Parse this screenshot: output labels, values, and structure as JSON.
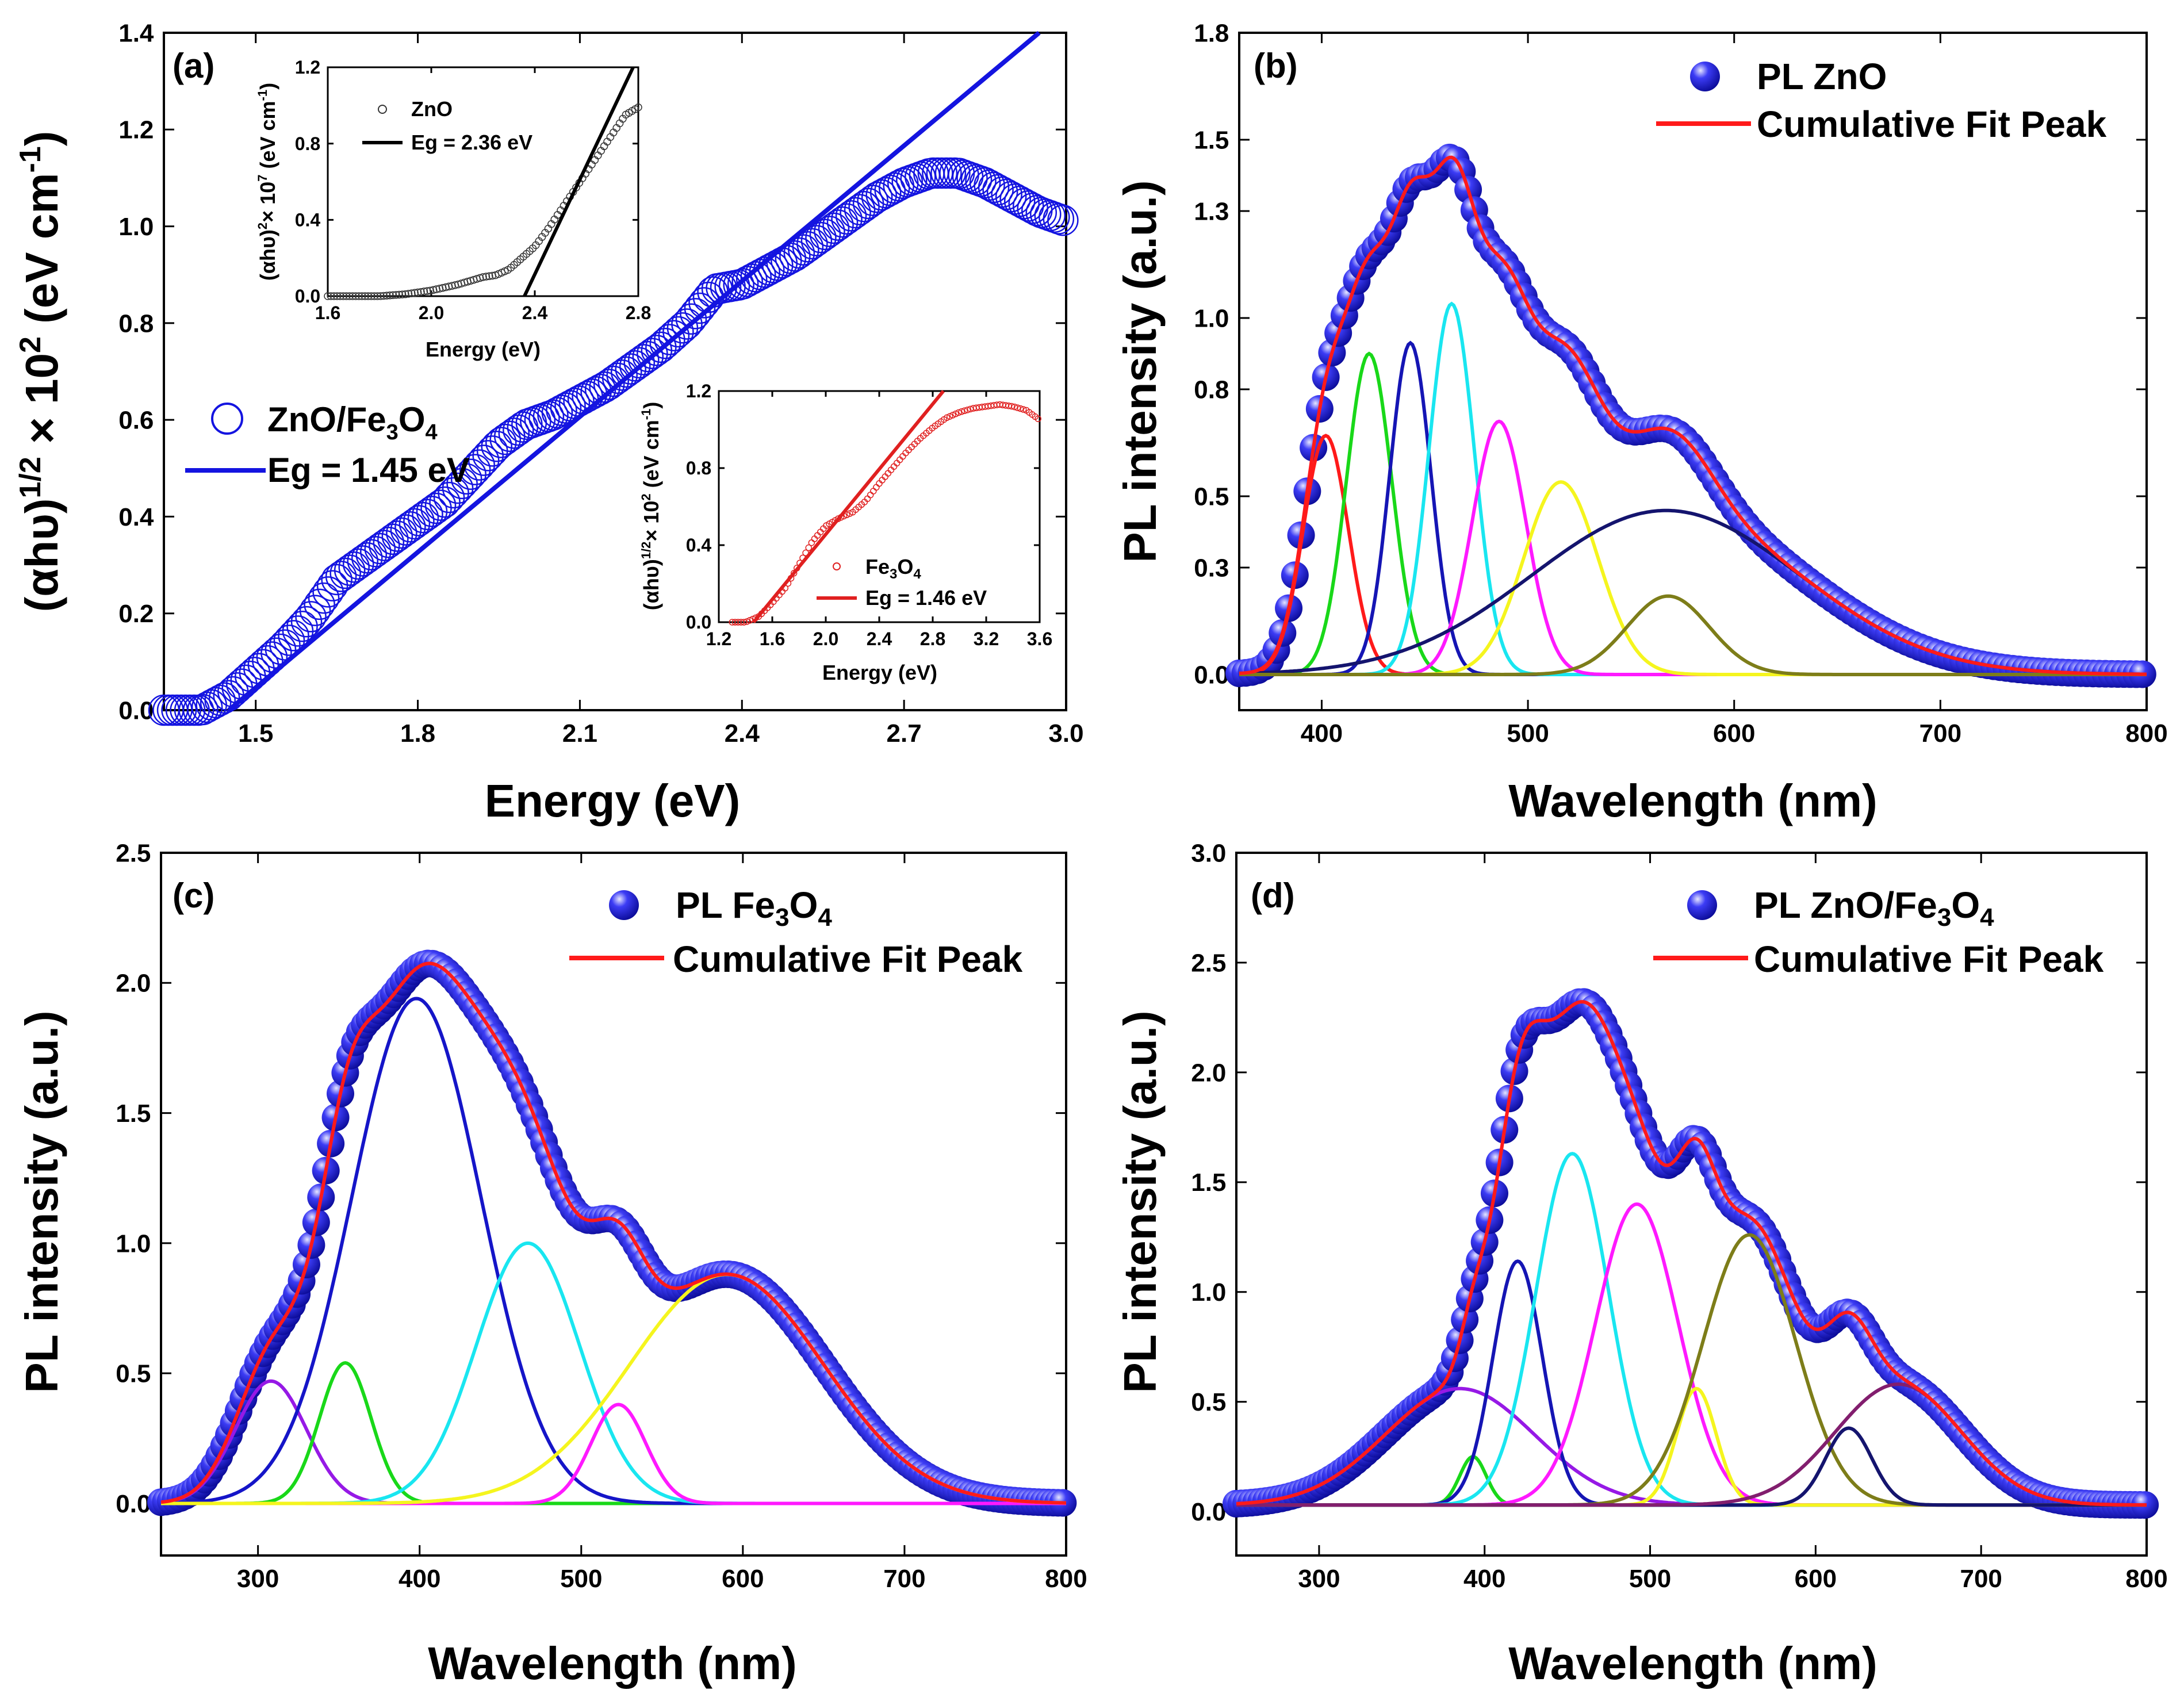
{
  "figure": {
    "panels": [
      {
        "id": "a",
        "tag": "(a)"
      },
      {
        "id": "b",
        "tag": "(b)"
      },
      {
        "id": "c",
        "tag": "(c)"
      },
      {
        "id": "d",
        "tag": "(d)"
      }
    ]
  },
  "chart_data": [
    {
      "id": "a",
      "type": "scatter",
      "tag": "(a)",
      "xlabel": "Energy (eV)",
      "ylabel": "(αhυ)^1/2 × 10^2 (eV cm^-1)",
      "xlim": [
        1.33,
        3.0
      ],
      "ylim": [
        0.0,
        1.4
      ],
      "xticks": [
        1.5,
        1.8,
        2.1,
        2.4,
        2.7,
        3.0
      ],
      "yticks": [
        0.0,
        0.2,
        0.4,
        0.6,
        0.8,
        1.0,
        1.2,
        1.4
      ],
      "series": [
        {
          "name": "ZnO/Fe₃O₄",
          "style": "open-circles",
          "color": "#1414e0",
          "x": [
            1.33,
            1.4,
            1.45,
            1.5,
            1.55,
            1.6,
            1.65,
            1.7,
            1.75,
            1.8,
            1.85,
            1.9,
            1.95,
            2.0,
            2.05,
            2.1,
            2.15,
            2.2,
            2.25,
            2.3,
            2.35,
            2.4,
            2.45,
            2.5,
            2.55,
            2.6,
            2.65,
            2.7,
            2.75,
            2.8,
            2.85,
            2.9,
            2.95,
            3.0
          ],
          "y": [
            0.0,
            0.0,
            0.03,
            0.08,
            0.13,
            0.19,
            0.27,
            0.31,
            0.35,
            0.39,
            0.43,
            0.49,
            0.55,
            0.59,
            0.61,
            0.64,
            0.67,
            0.71,
            0.75,
            0.8,
            0.87,
            0.88,
            0.91,
            0.94,
            0.98,
            1.02,
            1.06,
            1.09,
            1.11,
            1.11,
            1.09,
            1.06,
            1.03,
            1.01
          ]
        },
        {
          "name": "Eg = 1.45 eV",
          "style": "line",
          "color": "#1414e0",
          "x": [
            1.45,
            2.95
          ],
          "y": [
            0.0,
            1.4
          ]
        }
      ],
      "insets": [
        {
          "xlabel": "Energy (eV)",
          "ylabel": "(αhυ)²× 10⁷ (eV cm⁻¹)",
          "xlim": [
            1.6,
            2.8
          ],
          "ylim": [
            0.0,
            1.2
          ],
          "xticks": [
            1.6,
            2.0,
            2.4,
            2.8
          ],
          "yticks": [
            0.0,
            0.4,
            0.8,
            1.2
          ],
          "series": [
            {
              "name": "ZnO",
              "style": "open-circles",
              "color": "#333333",
              "x": [
                1.6,
                1.7,
                1.8,
                1.9,
                2.0,
                2.1,
                2.15,
                2.2,
                2.25,
                2.3,
                2.35,
                2.4,
                2.45,
                2.5,
                2.55,
                2.6,
                2.65,
                2.7,
                2.75,
                2.8
              ],
              "y": [
                0.0,
                0.0,
                0.0,
                0.01,
                0.03,
                0.06,
                0.08,
                0.1,
                0.11,
                0.14,
                0.2,
                0.26,
                0.35,
                0.45,
                0.55,
                0.65,
                0.75,
                0.85,
                0.95,
                0.99
              ]
            },
            {
              "name": "Eg = 2.36 eV",
              "style": "line",
              "color": "#000000",
              "x": [
                2.36,
                2.78
              ],
              "y": [
                0.0,
                1.2
              ]
            }
          ]
        },
        {
          "xlabel": "Energy (eV)",
          "ylabel": "(αhυ)^1/2× 10² (eV cm⁻¹)",
          "xlim": [
            1.2,
            3.6
          ],
          "ylim": [
            0.0,
            1.2
          ],
          "xticks": [
            1.2,
            1.6,
            2.0,
            2.4,
            2.8,
            3.2,
            3.6
          ],
          "yticks": [
            0.0,
            0.4,
            0.8,
            1.2
          ],
          "series": [
            {
              "name": "Fe₃O₄",
              "style": "open-circles",
              "color": "#e02020",
              "x": [
                1.3,
                1.4,
                1.5,
                1.6,
                1.7,
                1.8,
                1.9,
                2.0,
                2.1,
                2.2,
                2.3,
                2.4,
                2.5,
                2.6,
                2.7,
                2.8,
                2.9,
                3.0,
                3.1,
                3.2,
                3.3,
                3.4,
                3.5,
                3.6
              ],
              "y": [
                0.0,
                0.0,
                0.03,
                0.1,
                0.18,
                0.3,
                0.42,
                0.5,
                0.54,
                0.57,
                0.63,
                0.72,
                0.8,
                0.88,
                0.95,
                1.01,
                1.06,
                1.09,
                1.11,
                1.12,
                1.13,
                1.12,
                1.1,
                1.05
              ]
            },
            {
              "name": "Eg = 1.46 eV",
              "style": "line",
              "color": "#e02020",
              "x": [
                1.46,
                2.88
              ],
              "y": [
                0.0,
                1.2
              ]
            }
          ]
        }
      ]
    },
    {
      "id": "b",
      "type": "line",
      "tag": "(b)",
      "xlabel": "Wavelength (nm)",
      "ylabel": "PL intensity (a.u.)",
      "xlim": [
        360,
        800
      ],
      "ylim": [
        -0.1,
        1.8
      ],
      "xticks": [
        400,
        500,
        600,
        700,
        800
      ],
      "yticks": [
        0.0,
        0.3,
        0.5,
        0.8,
        1.0,
        1.3,
        1.5,
        1.8
      ],
      "ytick_labels": [
        "0.0",
        "0.3",
        "0.5",
        "0.8",
        "1.0",
        "1.3",
        "1.5",
        "1.8"
      ],
      "data_series": {
        "name": "PL ZnO",
        "color": "#1515d8",
        "xstep": 3
      },
      "fit_series": {
        "name": "Cumulative Fit Peak",
        "color": "#ff1a1a"
      },
      "peaks": [
        {
          "center": 402,
          "height": 0.67,
          "width": 11,
          "color": "#ff1a1a"
        },
        {
          "center": 423,
          "height": 0.9,
          "width": 11,
          "color": "#19d819"
        },
        {
          "center": 443,
          "height": 0.93,
          "width": 10,
          "color": "#1515b4"
        },
        {
          "center": 463,
          "height": 1.04,
          "width": 11,
          "color": "#19e6f0"
        },
        {
          "center": 486,
          "height": 0.71,
          "width": 13,
          "color": "#ff19ff"
        },
        {
          "center": 516,
          "height": 0.54,
          "width": 18,
          "color": "#f5f51e"
        },
        {
          "center": 567,
          "height": 0.46,
          "width": 65,
          "color": "#14146e"
        },
        {
          "center": 568,
          "height": 0.22,
          "width": 20,
          "color": "#7d7d19"
        }
      ]
    },
    {
      "id": "c",
      "type": "line",
      "tag": "(c)",
      "xlabel": "Wavelength (nm)",
      "ylabel": "PL intensity (a.u.)",
      "xlim": [
        240,
        800
      ],
      "ylim": [
        -0.2,
        2.5
      ],
      "xticks": [
        300,
        400,
        500,
        600,
        700,
        800
      ],
      "yticks": [
        0.0,
        0.5,
        1.0,
        1.5,
        2.0,
        2.5
      ],
      "ytick_labels": [
        "0.0",
        "0.5",
        "1.0",
        "1.5",
        "2.0",
        "2.5"
      ],
      "data_series": {
        "name": "PL Fe₃O₄",
        "color": "#1515d8",
        "xstep": 3
      },
      "fit_series": {
        "name": "Cumulative Fit Peak",
        "color": "#ff1a1a"
      },
      "peaks": [
        {
          "center": 308,
          "height": 0.47,
          "width": 22,
          "color": "#9619e6"
        },
        {
          "center": 354,
          "height": 0.54,
          "width": 16,
          "color": "#19d819"
        },
        {
          "center": 398,
          "height": 1.94,
          "width": 40,
          "color": "#1515c8"
        },
        {
          "center": 467,
          "height": 1.0,
          "width": 32,
          "color": "#19e6f0"
        },
        {
          "center": 523,
          "height": 0.38,
          "width": 17,
          "color": "#ff19ff"
        },
        {
          "center": 590,
          "height": 0.88,
          "width": 60,
          "color": "#f5f51e"
        }
      ]
    },
    {
      "id": "d",
      "type": "line",
      "tag": "(d)",
      "xlabel": "Wavelength (nm)",
      "ylabel": "PL intensity (a.u.)",
      "xlim": [
        250,
        800
      ],
      "ylim": [
        -0.2,
        3.0
      ],
      "xticks": [
        300,
        400,
        500,
        600,
        700,
        800
      ],
      "yticks": [
        0.0,
        0.5,
        1.0,
        1.5,
        2.0,
        2.5,
        3.0
      ],
      "ytick_labels": [
        "0.0",
        "0.5",
        "1.0",
        "1.5",
        "2.0",
        "2.5",
        "3.0"
      ],
      "baseline": 0.03,
      "data_series": {
        "name": "PL ZnO/Fe₃O₄",
        "color": "#1515d8",
        "xstep": 3
      },
      "fit_series": {
        "name": "Cumulative Fit Peak",
        "color": "#ff1a1a"
      },
      "peaks": [
        {
          "center": 385,
          "height": 0.53,
          "width": 45,
          "color": "#9619e6"
        },
        {
          "center": 393,
          "height": 0.22,
          "width": 8,
          "color": "#19d819"
        },
        {
          "center": 420,
          "height": 1.11,
          "width": 15,
          "color": "#1515b4"
        },
        {
          "center": 453,
          "height": 1.6,
          "width": 22,
          "color": "#19e6f0"
        },
        {
          "center": 492,
          "height": 1.37,
          "width": 25,
          "color": "#ff19ff"
        },
        {
          "center": 528,
          "height": 0.53,
          "width": 12,
          "color": "#f5f51e"
        },
        {
          "center": 560,
          "height": 1.23,
          "width": 28,
          "color": "#7d7d19"
        },
        {
          "center": 620,
          "height": 0.35,
          "width": 14,
          "color": "#14146e"
        },
        {
          "center": 650,
          "height": 0.55,
          "width": 38,
          "color": "#821e6e"
        }
      ]
    }
  ]
}
